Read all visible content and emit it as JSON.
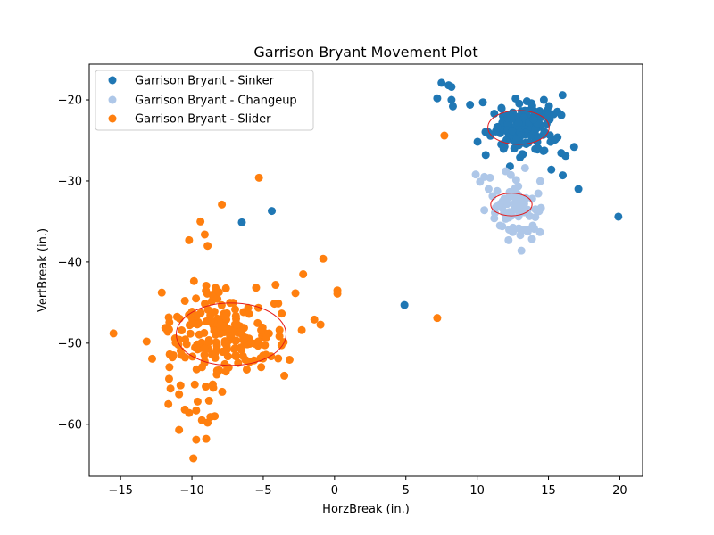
{
  "chart_data": {
    "type": "scatter",
    "title": "Garrison Bryant Movement Plot",
    "xlabel": "HorzBreak (in.)",
    "ylabel": "VertBreak (in.)",
    "xlim": [
      -17.2,
      21.6
    ],
    "ylim": [
      -66.4,
      -15.6
    ],
    "xticks": [
      -15,
      -10,
      -5,
      0,
      5,
      10,
      15,
      20
    ],
    "yticks": [
      -60,
      -50,
      -40,
      -30,
      -20
    ],
    "grid": false,
    "legend_position": "top-left",
    "series": [
      {
        "name": "Garrison Bryant - Sinker",
        "color": "#1f77b4",
        "ellipse": {
          "cx": 12.9,
          "cy": -23.4,
          "rx": 2.15,
          "ry": 2.1
        },
        "cluster": {
          "cx": 13.3,
          "cy": -23.3,
          "sx": 1.15,
          "sy": 1.55,
          "n": 150,
          "seed": 11
        },
        "points": [
          [
            7.5,
            -17.9
          ],
          [
            8.0,
            -18.2
          ],
          [
            8.2,
            -18.4
          ],
          [
            7.2,
            -19.8
          ],
          [
            8.2,
            -20.0
          ],
          [
            8.3,
            -20.8
          ],
          [
            9.5,
            -20.6
          ],
          [
            10.4,
            -20.3
          ],
          [
            11.2,
            -21.7
          ],
          [
            11.3,
            -23.9
          ],
          [
            10.6,
            -26.8
          ],
          [
            12.3,
            -28.2
          ],
          [
            12.6,
            -26.0
          ],
          [
            16.8,
            -25.8
          ],
          [
            16.2,
            -26.9
          ],
          [
            16.0,
            -29.3
          ],
          [
            15.2,
            -28.6
          ],
          [
            17.1,
            -31.0
          ],
          [
            19.9,
            -34.4
          ],
          [
            -6.5,
            -35.1
          ],
          [
            -4.4,
            -33.7
          ],
          [
            4.9,
            -45.3
          ]
        ]
      },
      {
        "name": "Garrison Bryant - Changeup",
        "color": "#aec7e8",
        "ellipse": {
          "cx": 12.4,
          "cy": -32.9,
          "rx": 1.45,
          "ry": 1.4
        },
        "cluster": {
          "cx": 12.6,
          "cy": -33.0,
          "sx": 0.85,
          "sy": 1.6,
          "n": 70,
          "seed": 23
        },
        "points": [
          [
            9.9,
            -29.2
          ],
          [
            10.5,
            -29.5
          ],
          [
            10.9,
            -29.6
          ],
          [
            10.2,
            -30.1
          ],
          [
            10.8,
            -31.0
          ],
          [
            10.5,
            -33.6
          ],
          [
            11.2,
            -34.6
          ],
          [
            11.6,
            -35.5
          ],
          [
            12.5,
            -36.3
          ],
          [
            13.1,
            -38.6
          ],
          [
            12.2,
            -37.3
          ],
          [
            13.6,
            -36.0
          ],
          [
            14.4,
            -36.3
          ],
          [
            14.0,
            -35.9
          ],
          [
            13.9,
            -35.5
          ],
          [
            12.0,
            -28.8
          ]
        ]
      },
      {
        "name": "Garrison Bryant - Slider",
        "color": "#ff7f0e",
        "ellipse": {
          "cx": -7.25,
          "cy": -48.9,
          "rx": 3.85,
          "ry": 3.85
        },
        "cluster": {
          "cx": -7.5,
          "cy": -49.0,
          "sx": 2.1,
          "sy": 2.6,
          "n": 210,
          "seed": 37
        },
        "points": [
          [
            -5.3,
            -29.6
          ],
          [
            -7.9,
            -32.9
          ],
          [
            -9.4,
            -35.0
          ],
          [
            -9.1,
            -36.6
          ],
          [
            -10.2,
            -37.3
          ],
          [
            -8.9,
            -38.0
          ],
          [
            -0.8,
            -39.6
          ],
          [
            0.2,
            -43.5
          ],
          [
            0.2,
            -43.9
          ],
          [
            -2.2,
            -41.5
          ],
          [
            -2.3,
            -48.4
          ],
          [
            7.7,
            -24.4
          ],
          [
            7.2,
            -46.9
          ],
          [
            -15.5,
            -48.8
          ],
          [
            -11.6,
            -48.3
          ],
          [
            -11.3,
            -51.5
          ],
          [
            -11.6,
            -54.4
          ],
          [
            -11.5,
            -55.6
          ],
          [
            -10.8,
            -55.2
          ],
          [
            -10.9,
            -56.3
          ],
          [
            -10.5,
            -58.2
          ],
          [
            -10.2,
            -58.6
          ],
          [
            -9.7,
            -58.3
          ],
          [
            -9.3,
            -59.5
          ],
          [
            -8.9,
            -59.8
          ],
          [
            -8.7,
            -59.1
          ],
          [
            -8.4,
            -59.0
          ],
          [
            -9.6,
            -57.2
          ],
          [
            -9.7,
            -61.9
          ],
          [
            -9.0,
            -61.8
          ],
          [
            -10.9,
            -60.7
          ],
          [
            -9.9,
            -64.2
          ],
          [
            -9.8,
            -55.1
          ],
          [
            -8.8,
            -57.1
          ],
          [
            -8.5,
            -55.5
          ]
        ]
      }
    ]
  }
}
